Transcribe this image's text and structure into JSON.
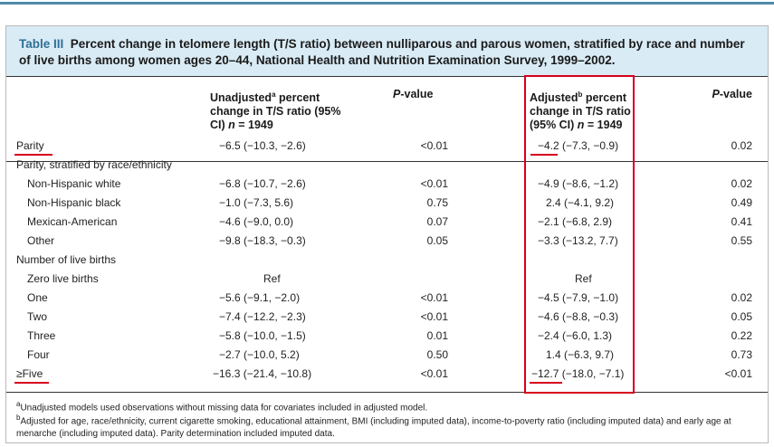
{
  "title": {
    "label": "Table III",
    "text": "Percent change in telomere length (T/S ratio) between nulliparous and parous women, stratified by race and number of live births among women ages 20–44, National Health and Nutrition Examination Survey, 1999–2002."
  },
  "headers": {
    "unadjusted": {
      "pre": "Unadjusted",
      "sup": "a",
      "post": " percent change in T/S ratio (95% CI) ",
      "n_var": "n",
      "n_val": " = 1949"
    },
    "pvalue1": {
      "p": "P",
      "rest": "-value"
    },
    "adjusted": {
      "pre": "Adjusted",
      "sup": "b",
      "post": " percent change in T/S ratio (95% CI) ",
      "n_var": "n",
      "n_val": " = 1949"
    },
    "pvalue2": {
      "p": "P",
      "rest": "-value"
    }
  },
  "rows": [
    {
      "label": "Parity",
      "unadj": "−6.5 (−10.3, −2.6)",
      "p1": "<0.01",
      "adj": "−4.2 (−7.3, −0.9)",
      "p2": "0.02"
    },
    {
      "label": "Parity, stratified by race/ethnicity",
      "unadj": "",
      "p1": "",
      "adj": "",
      "p2": ""
    },
    {
      "label": "Non-Hispanic white",
      "unadj": "−6.8 (−10.7, −2.6)",
      "p1": "<0.01",
      "adj": "−4.9 (−8.6, −1.2)",
      "p2": "0.02"
    },
    {
      "label": "Non-Hispanic black",
      "unadj": "−1.0 (−7.3, 5.6)",
      "p1": "0.75",
      "adj": "2.4 (−4.1, 9.2)",
      "p2": "0.49"
    },
    {
      "label": "Mexican-American",
      "unadj": "−4.6 (−9.0, 0.0)",
      "p1": "0.07",
      "adj": "−2.1 (−6.8, 2.9)",
      "p2": "0.41"
    },
    {
      "label": "Other",
      "unadj": "−9.8 (−18.3, −0.3)",
      "p1": "0.05",
      "adj": "−3.3 (−13.2, 7.7)",
      "p2": "0.55"
    },
    {
      "label": "Number of live births",
      "unadj": "",
      "p1": "",
      "adj": "",
      "p2": ""
    },
    {
      "label": "Zero live births",
      "unadj": "Ref",
      "p1": "",
      "adj": "Ref",
      "p2": ""
    },
    {
      "label": "One",
      "unadj": "−5.6 (−9.1, −2.0)",
      "p1": "<0.01",
      "adj": "−4.5 (−7.9, −1.0)",
      "p2": "0.02"
    },
    {
      "label": "Two",
      "unadj": "−7.4 (−12.2, −2.3)",
      "p1": "<0.01",
      "adj": "−4.6 (−8.8, −0.3)",
      "p2": "0.05"
    },
    {
      "label": "Three",
      "unadj": "−5.8 (−10.0, −1.5)",
      "p1": "0.01",
      "adj": "−2.4 (−6.0, 1.3)",
      "p2": "0.22"
    },
    {
      "label": "Four",
      "unadj": "−2.7 (−10.0, 5.2)",
      "p1": "0.50",
      "adj": "1.4 (−6.3, 9.7)",
      "p2": "0.73"
    },
    {
      "label": "≥Five",
      "unadj": "−16.3 (−21.4, −10.8)",
      "p1": "<0.01",
      "adj": "−12.7 (−18.0, −7.1)",
      "p2": "<0.01"
    }
  ],
  "footnotes": {
    "a": {
      "sup": "a",
      "text": "Unadjusted models used observations without missing data for covariates included in adjusted model."
    },
    "b": {
      "sup": "b",
      "text": "Adjusted for age, race/ethnicity, current cigarette smoking, educational attainment, BMI (including imputed data), income-to-poverty ratio (including imputed data) and early age at menarche (including imputed data). Parity determination included imputed data."
    }
  },
  "highlight_color": "#d6001c",
  "title_band_color": "#d9ebf5"
}
